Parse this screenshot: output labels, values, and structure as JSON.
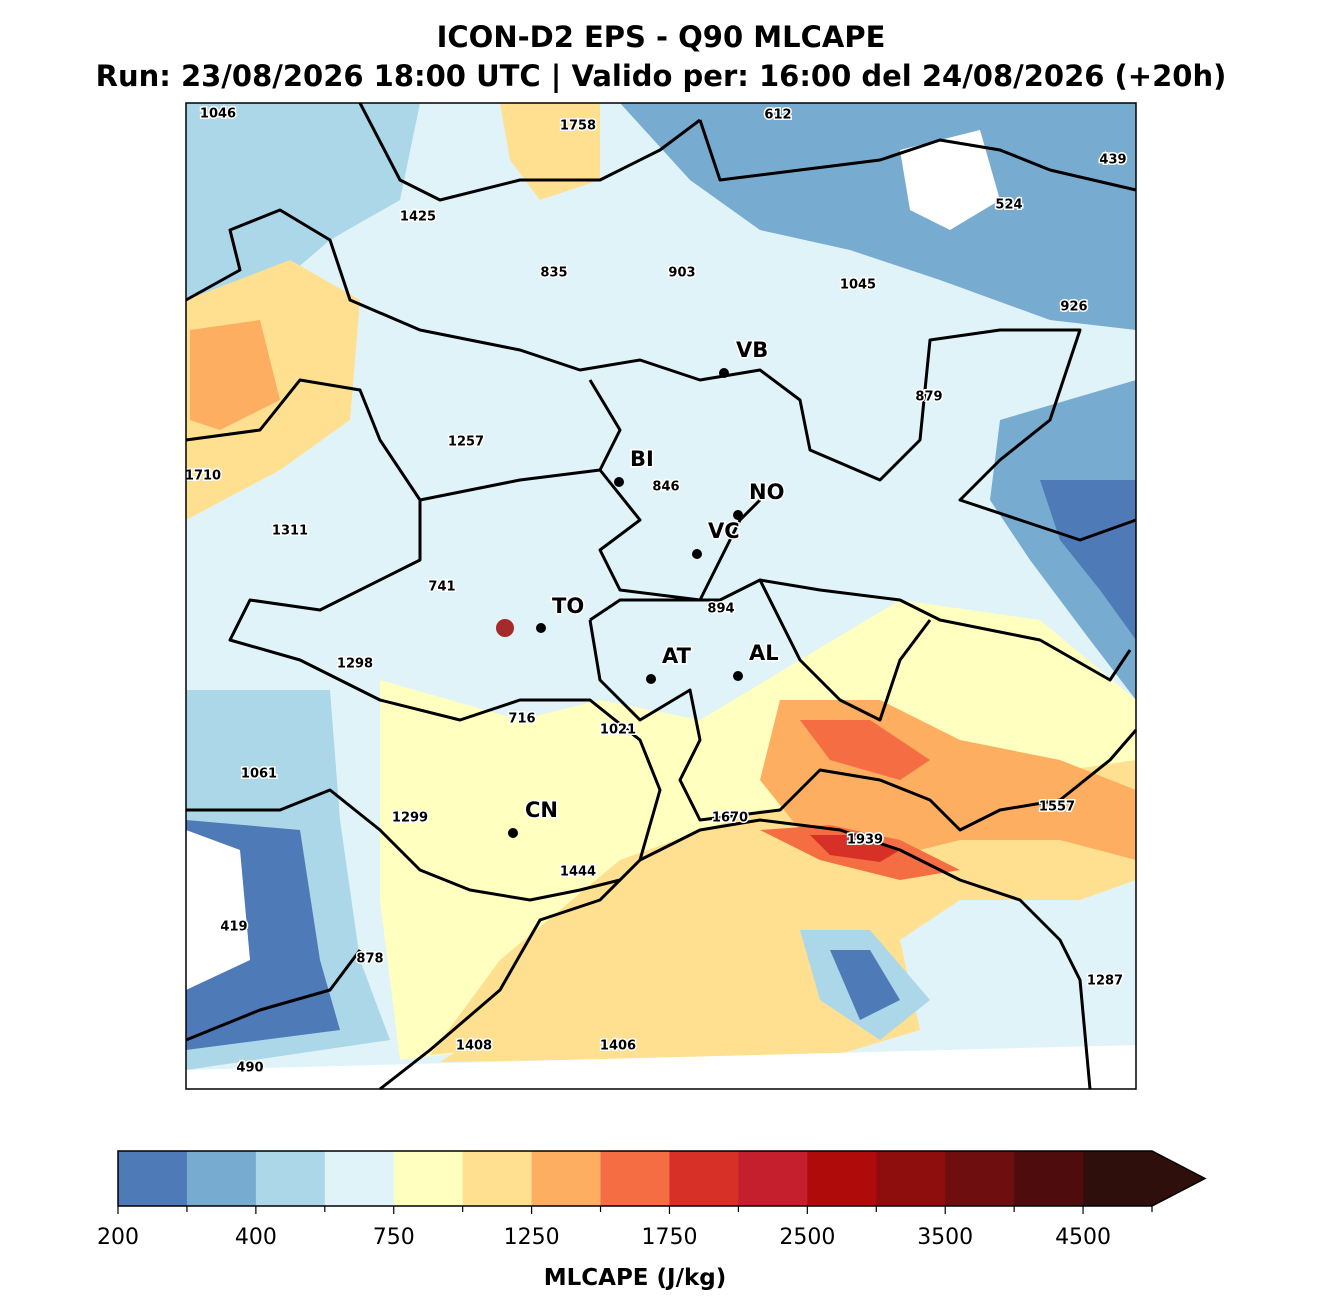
{
  "title": "ICON-D2 EPS - Q90 MLCAPE",
  "subtitle": "Run: 23/08/2026 18:00 UTC | Valido per: 16:00 del 24/08/2026 (+20h)",
  "map": {
    "cities": [
      "VB",
      "BI",
      "NO",
      "VC",
      "TO",
      "AT",
      "AL",
      "CN"
    ],
    "annotations": [
      1046,
      1758,
      612,
      439,
      1425,
      524,
      835,
      903,
      1045,
      926,
      879,
      1257,
      1710,
      846,
      1311,
      741,
      894,
      1298,
      716,
      1021,
      1061,
      1299,
      1670,
      1939,
      1557,
      1444,
      419,
      878,
      1287,
      1408,
      1406,
      490
    ]
  },
  "colorbar": {
    "colors": [
      "#4f7ab8",
      "#77abd0",
      "#abd7e8",
      "#e0f3f8",
      "#ffffbf",
      "#fee090",
      "#fdae61",
      "#f46d43",
      "#d73027",
      "#c51f2e",
      "#b00b0b",
      "#8e0e0e",
      "#6e0e0e",
      "#4f0c0c",
      "#2e0f0b"
    ],
    "ticks": [
      200,
      400,
      750,
      1250,
      1750,
      2500,
      3500,
      4500
    ],
    "label": "MLCAPE (J/kg)"
  }
}
